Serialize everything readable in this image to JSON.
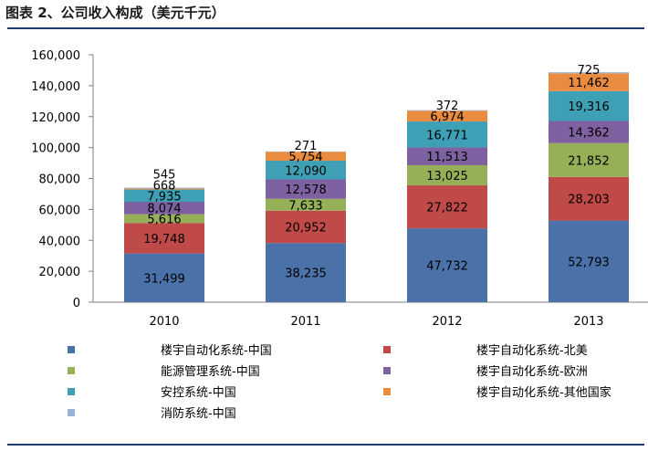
{
  "figure_title": "图表 2、公司收入构成（美元千元）",
  "chart_data": {
    "type": "bar",
    "stacked": true,
    "categories": [
      "2010",
      "2011",
      "2012",
      "2013"
    ],
    "ylim": [
      0,
      160000
    ],
    "yticks": [
      0,
      20000,
      40000,
      60000,
      80000,
      100000,
      120000,
      140000,
      160000
    ],
    "ytick_labels": [
      "0",
      "20,000",
      "40,000",
      "60,000",
      "80,000",
      "100,000",
      "120,000",
      "140,000",
      "160,000"
    ],
    "grid": false,
    "legend_position": "bottom",
    "series": [
      {
        "name": "楼宇自动化系统-中国",
        "color": "#4a72a8",
        "values": [
          31499,
          38235,
          47732,
          52793
        ],
        "labels": [
          "31,499",
          "38,235",
          "47,732",
          "52,793"
        ]
      },
      {
        "name": "楼宇自动化系统-北美",
        "color": "#bf4a47",
        "values": [
          19748,
          20952,
          27822,
          28203
        ],
        "labels": [
          "19,748",
          "20,952",
          "27,822",
          "28,203"
        ]
      },
      {
        "name": "能源管理系统-中国",
        "color": "#96b057",
        "values": [
          5616,
          7633,
          13025,
          21852
        ],
        "labels": [
          "5,616",
          "7,633",
          "13,025",
          "21,852"
        ]
      },
      {
        "name": "楼宇自动化系统-欧洲",
        "color": "#7e61a0",
        "values": [
          8074,
          12578,
          11513,
          14362
        ],
        "labels": [
          "8,074",
          "12,578",
          "11,513",
          "14,362"
        ]
      },
      {
        "name": "安控系统-中国",
        "color": "#3ea0b5",
        "values": [
          7935,
          12090,
          16771,
          19316
        ],
        "labels": [
          "7,935",
          "12,090",
          "16,771",
          "19,316"
        ]
      },
      {
        "name": "楼宇自动化系统-其他国家",
        "color": "#e98c3f",
        "values": [
          668,
          5754,
          6974,
          11462
        ],
        "labels": [
          "668",
          "5,754",
          "6,974",
          "11,462"
        ]
      },
      {
        "name": "消防系统-中国",
        "color": "#9ab4d6",
        "values": [
          545,
          271,
          372,
          725
        ],
        "labels": [
          "545",
          "271",
          "372",
          "725"
        ]
      }
    ]
  }
}
